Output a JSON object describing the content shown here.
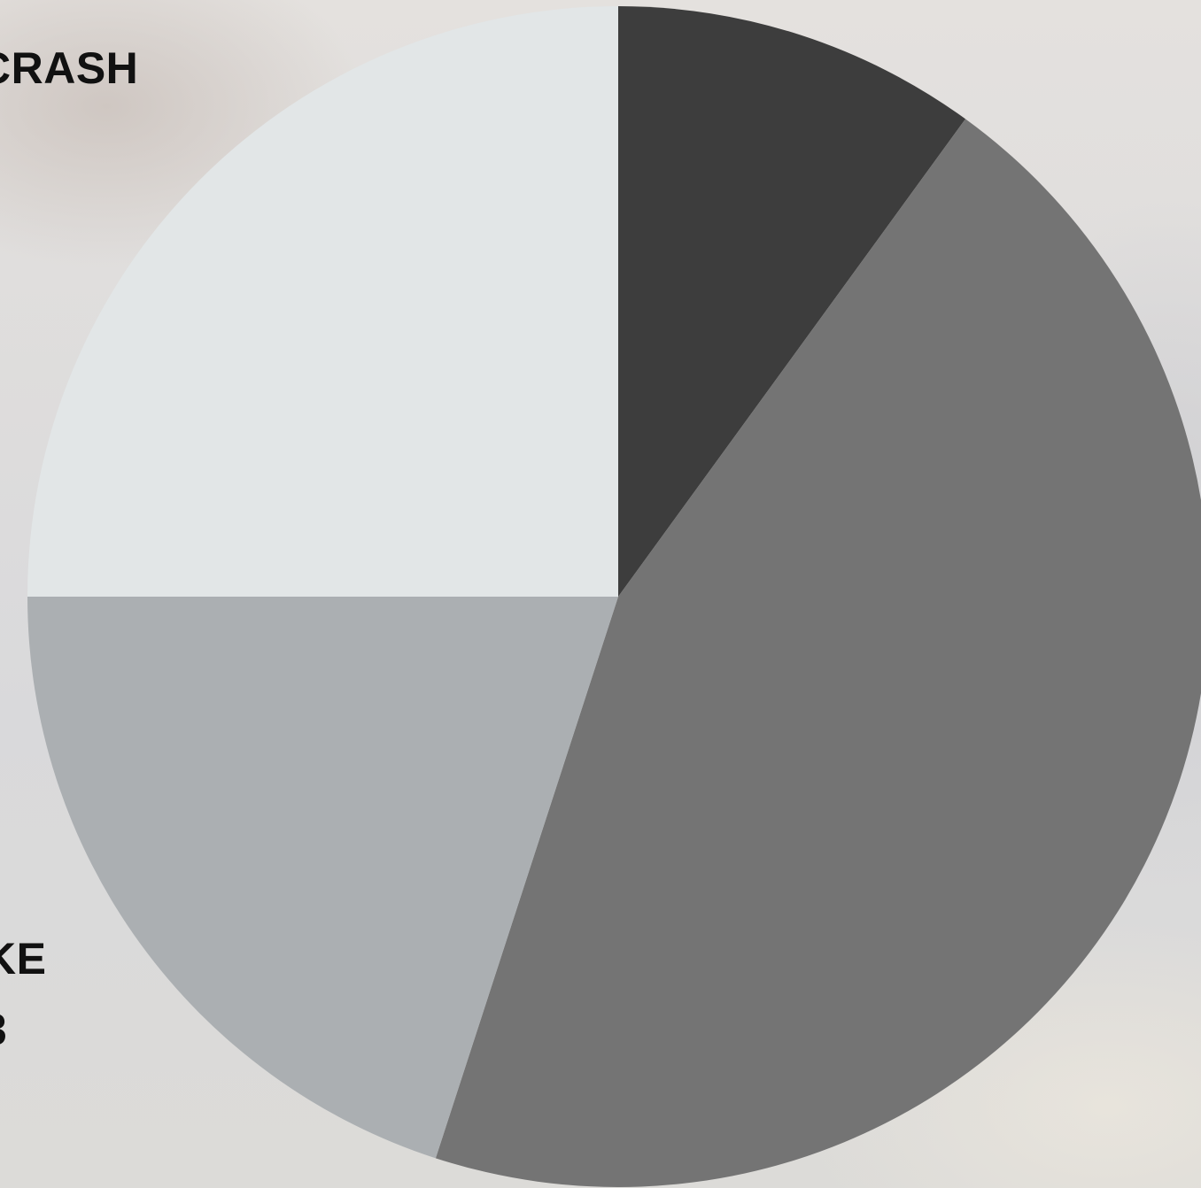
{
  "chart_data": {
    "type": "pie",
    "title": "",
    "slices": [
      {
        "label": "",
        "value": 10,
        "color": "#3d3d3d"
      },
      {
        "label": "",
        "value": 45,
        "color": "#747474"
      },
      {
        "label": "",
        "value": 20,
        "color": "#abafb2"
      },
      {
        "label": "",
        "value": 25,
        "color": "#e2e6e7"
      }
    ],
    "start_angle_deg": 0,
    "direction": "clockwise",
    "legend": "none",
    "partial_labels": [
      "CRASH",
      "KE",
      "3"
    ]
  }
}
